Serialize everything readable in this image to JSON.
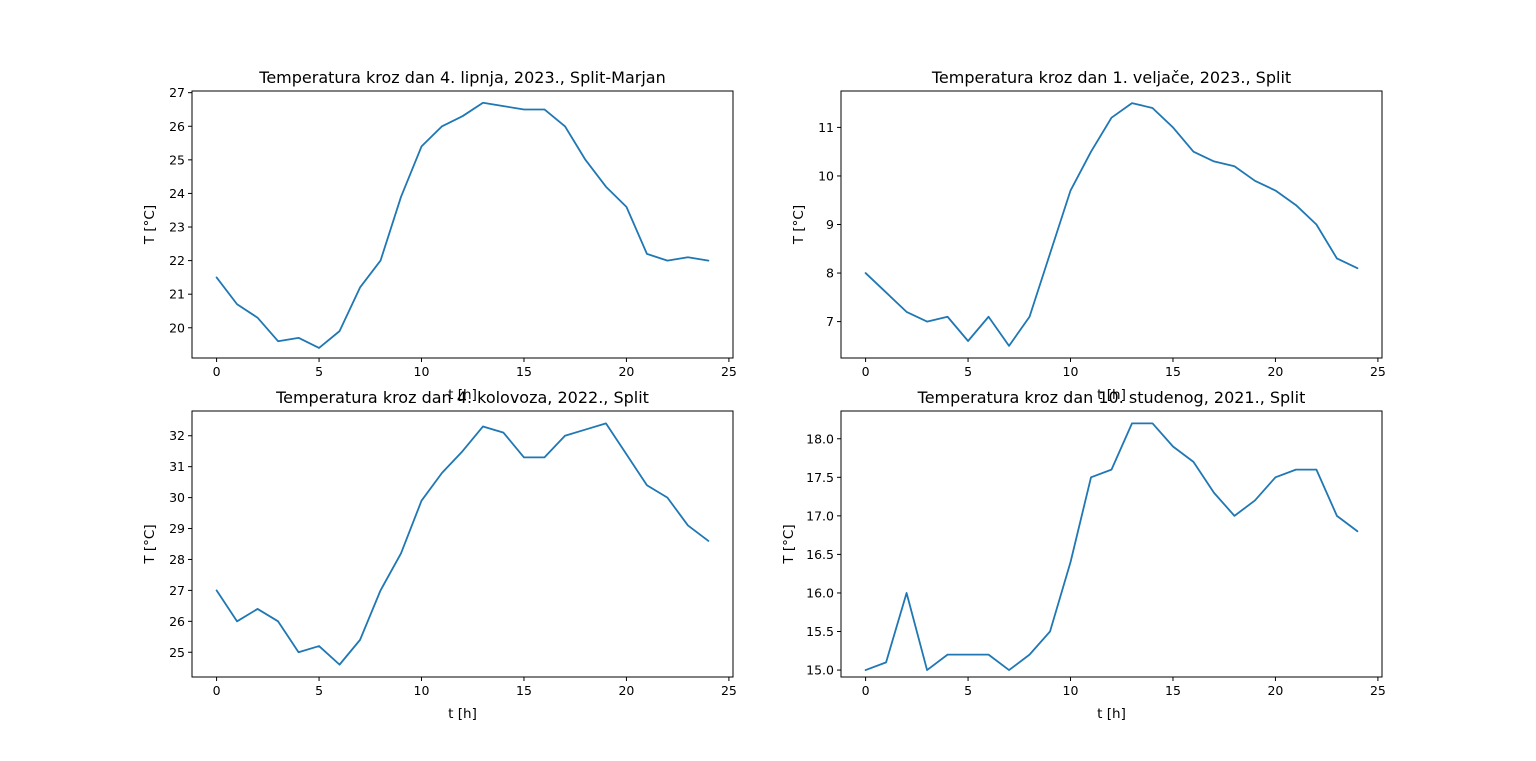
{
  "figure": {
    "background": "#ffffff",
    "line_color": "#1f77b4"
  },
  "chart_data": [
    {
      "type": "line",
      "title": "Temperatura kroz dan 4. lipnja, 2023., Split-Marjan",
      "xlabel": "t [h]",
      "ylabel": "T [°C]",
      "xlim": [
        -1.2,
        25.2
      ],
      "ylim": [
        19.1,
        27.05
      ],
      "xticks": [
        0,
        5,
        10,
        15,
        20,
        25
      ],
      "yticks": [
        20,
        21,
        22,
        23,
        24,
        25,
        26,
        27
      ],
      "grid": false,
      "x": [
        0,
        1,
        2,
        3,
        4,
        5,
        6,
        7,
        8,
        9,
        10,
        11,
        12,
        13,
        14,
        15,
        16,
        17,
        18,
        19,
        20,
        21,
        22,
        23,
        24
      ],
      "y": [
        21.5,
        20.7,
        20.3,
        19.6,
        19.7,
        19.4,
        19.9,
        21.2,
        22.0,
        23.9,
        25.4,
        26.0,
        26.3,
        26.7,
        26.6,
        26.5,
        26.5,
        26.0,
        25.0,
        24.2,
        23.6,
        22.2,
        22.0,
        22.1,
        22.0
      ]
    },
    {
      "type": "line",
      "title": "Temperatura kroz dan 1. veljače, 2023., Split",
      "xlabel": "t [h]",
      "ylabel": "T [°C]",
      "xlim": [
        -1.2,
        25.2
      ],
      "ylim": [
        6.25,
        11.75
      ],
      "xticks": [
        0,
        5,
        10,
        15,
        20,
        25
      ],
      "yticks": [
        7,
        8,
        9,
        10,
        11
      ],
      "grid": false,
      "x": [
        0,
        1,
        2,
        3,
        4,
        5,
        6,
        7,
        8,
        9,
        10,
        11,
        12,
        13,
        14,
        15,
        16,
        17,
        18,
        19,
        20,
        21,
        22,
        23,
        24
      ],
      "y": [
        8.0,
        7.6,
        7.2,
        7.0,
        7.1,
        6.6,
        7.1,
        6.5,
        7.1,
        8.4,
        9.7,
        10.5,
        11.2,
        11.5,
        11.4,
        11.0,
        10.5,
        10.3,
        10.2,
        9.9,
        9.7,
        9.4,
        9.0,
        8.3,
        8.1
      ]
    },
    {
      "type": "line",
      "title": "Temperatura kroz dan 4. kolovoza, 2022., Split",
      "xlabel": "t [h]",
      "ylabel": "T [°C]",
      "xlim": [
        -1.2,
        25.2
      ],
      "ylim": [
        24.2,
        32.8
      ],
      "xticks": [
        0,
        5,
        10,
        15,
        20,
        25
      ],
      "yticks": [
        25,
        26,
        27,
        28,
        29,
        30,
        31,
        32
      ],
      "grid": false,
      "x": [
        0,
        1,
        2,
        3,
        4,
        5,
        6,
        7,
        8,
        9,
        10,
        11,
        12,
        13,
        14,
        15,
        16,
        17,
        18,
        19,
        20,
        21,
        22,
        23,
        24
      ],
      "y": [
        27.0,
        26.0,
        26.4,
        26.0,
        25.0,
        25.2,
        24.6,
        25.4,
        27.0,
        28.2,
        29.9,
        30.8,
        31.5,
        32.3,
        32.1,
        31.3,
        31.3,
        32.0,
        32.2,
        32.4,
        31.4,
        30.4,
        30.0,
        29.1,
        28.6
      ]
    },
    {
      "type": "line",
      "title": "Temperatura kroz dan 10. studenog, 2021., Split",
      "xlabel": "t [h]",
      "ylabel": "T [°C]",
      "xlim": [
        -1.2,
        25.2
      ],
      "ylim": [
        14.91,
        18.36
      ],
      "xticks": [
        0,
        5,
        10,
        15,
        20,
        25
      ],
      "yticks": [
        15.0,
        15.5,
        16.0,
        16.5,
        17.0,
        17.5,
        18.0
      ],
      "ytick_labels": [
        "15.0",
        "15.5",
        "16.0",
        "16.5",
        "17.0",
        "17.5",
        "18.0"
      ],
      "grid": false,
      "x": [
        0,
        1,
        2,
        3,
        4,
        5,
        6,
        7,
        8,
        9,
        10,
        11,
        12,
        13,
        14,
        15,
        16,
        17,
        18,
        19,
        20,
        21,
        22,
        23,
        24
      ],
      "y": [
        15.0,
        15.1,
        16.0,
        15.0,
        15.2,
        15.2,
        15.2,
        15.0,
        15.2,
        15.5,
        16.4,
        17.5,
        17.6,
        18.2,
        18.2,
        17.9,
        17.7,
        17.3,
        17.0,
        17.2,
        17.5,
        17.6,
        17.6,
        17.0,
        16.8
      ]
    }
  ]
}
